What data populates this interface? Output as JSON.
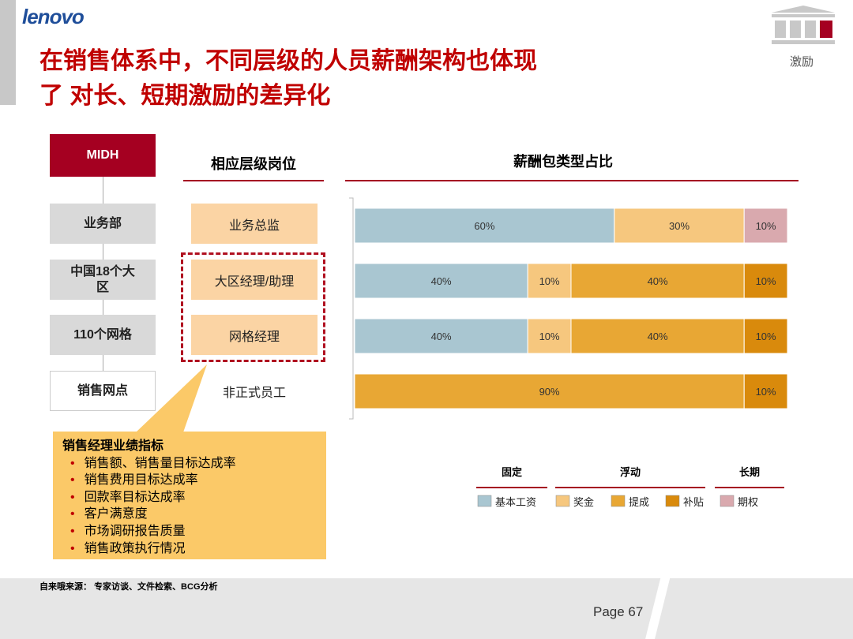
{
  "header": {
    "logo": "lenovo",
    "title_lines": [
      "在销售体系中，不同层级的人员薪酬架构也体现",
      "了 对长、短期激励的差异化"
    ],
    "tag": "激励"
  },
  "org": {
    "top": "MIDH",
    "column_title": "相应层级岗位",
    "levels": [
      "业务部",
      "中国18个大区",
      "110个网格",
      "销售网点"
    ],
    "positions": [
      "业务总监",
      "大区经理/助理",
      "网格经理",
      "非正式员工"
    ]
  },
  "chart_data": {
    "type": "stacked-bar",
    "title": "薪酬包类型占比",
    "xlim": [
      0,
      100
    ],
    "categories": [
      null,
      null,
      null,
      null
    ],
    "series": [
      {
        "name": "基本工资",
        "color": "#a9c6d1",
        "values": [
          60,
          40,
          40,
          0
        ],
        "value_labels": [
          "60%",
          "40%",
          "40%",
          null
        ]
      },
      {
        "name": "奖金",
        "color": "#f6c77e",
        "values": [
          30,
          10,
          10,
          0
        ],
        "value_labels": [
          "30%",
          "10%",
          "10%",
          null
        ]
      },
      {
        "name": "提成",
        "color": "#e8a734",
        "values": [
          0,
          40,
          40,
          90
        ],
        "value_labels": [
          null,
          "40%",
          "40%",
          "90%"
        ]
      },
      {
        "name": "补贴",
        "color": "#d98a0c",
        "values": [
          0,
          10,
          10,
          10
        ],
        "value_labels": [
          null,
          "10%",
          "10%",
          "10%"
        ]
      },
      {
        "name": "期权",
        "color": "#d9a9ae",
        "values": [
          10,
          0,
          0,
          0
        ],
        "value_labels": [
          "10%",
          null,
          null,
          null
        ]
      }
    ],
    "legend_groups": [
      "固定",
      "浮动",
      "长期"
    ]
  },
  "callout": {
    "title": "销售经理业绩指标",
    "items": [
      "销售额、销售量目标达成率",
      "销售费用目标达成率",
      "回款率目标达成率",
      "客户满意度",
      "市场调研报告质量",
      "销售政策执行情况"
    ]
  },
  "footer": {
    "source": "自来哦来源： 专家访谈、文件检索、BCG分析",
    "page": "Page 67"
  }
}
